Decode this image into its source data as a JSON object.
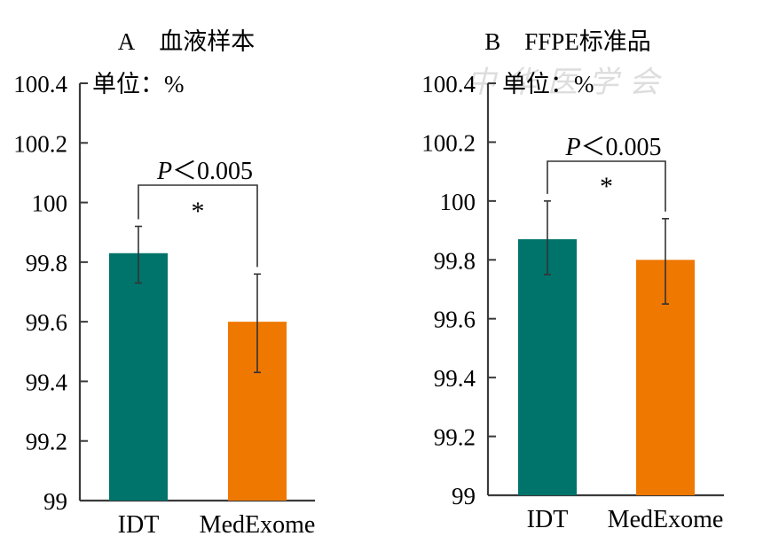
{
  "chart_data": [
    {
      "type": "bar",
      "panel_label": "A",
      "title": "血液样本",
      "unit_label": "单位：%",
      "xlabel": "",
      "ylabel": "",
      "ylim": [
        99,
        100.4
      ],
      "yticks": [
        99,
        99.2,
        99.4,
        99.6,
        99.8,
        100,
        100.2,
        100.4
      ],
      "ytick_labels": [
        "99",
        "99.2",
        "99.4",
        "99.6",
        "99.8",
        "100",
        "100.2",
        "100.4"
      ],
      "categories": [
        "IDT",
        "MedExome"
      ],
      "values": [
        99.83,
        99.6
      ],
      "error_upper": [
        99.92,
        99.76
      ],
      "error_lower": [
        99.73,
        99.43
      ],
      "colors": [
        "#00736B",
        "#EF7800"
      ],
      "annotation": {
        "p_label": "P",
        "p_text": "<0.005",
        "star": "*"
      },
      "grid": false
    },
    {
      "type": "bar",
      "panel_label": "B",
      "title": "FFPE标准品",
      "unit_label": "单位：%",
      "xlabel": "",
      "ylabel": "",
      "ylim": [
        99,
        100.4
      ],
      "yticks": [
        99,
        99.2,
        99.4,
        99.6,
        99.8,
        100,
        100.2,
        100.4
      ],
      "ytick_labels": [
        "99",
        "99.2",
        "99.4",
        "99.6",
        "99.8",
        "100",
        "100.2",
        "100.4"
      ],
      "categories": [
        "IDT",
        "MedExome"
      ],
      "values": [
        99.87,
        99.8
      ],
      "error_upper": [
        100.0,
        99.94
      ],
      "error_lower": [
        99.75,
        99.65
      ],
      "colors": [
        "#00736B",
        "#EF7800"
      ],
      "annotation": {
        "p_label": "P",
        "p_text": "<0.005",
        "star": "*"
      },
      "grid": false
    }
  ],
  "watermark": "中华医学会"
}
